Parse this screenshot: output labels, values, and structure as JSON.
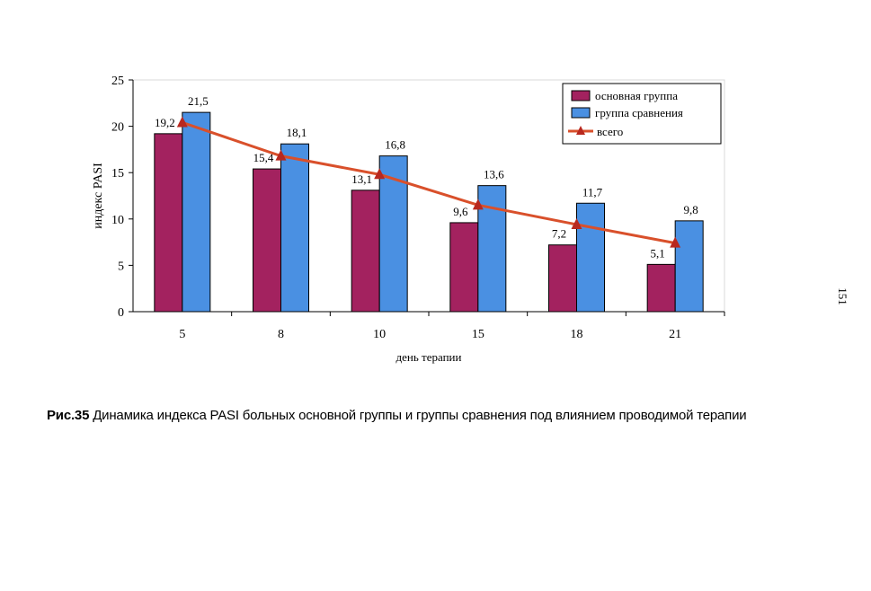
{
  "chart_data": {
    "type": "bar",
    "title": "",
    "xlabel": "день терапии",
    "ylabel": "индекс PASI",
    "categories": [
      "5",
      "8",
      "10",
      "15",
      "18",
      "21"
    ],
    "ylim": [
      0,
      25
    ],
    "yticks": [
      0,
      5,
      10,
      15,
      20,
      25
    ],
    "grid": false,
    "legend_position": "top-right",
    "series": [
      {
        "name": "основная группа",
        "type": "bar",
        "color": "#a3225f",
        "values": [
          19.2,
          15.4,
          13.1,
          9.6,
          7.2,
          5.1
        ],
        "labels": [
          "19,2",
          "15,4",
          "13,1",
          "9,6",
          "7,2",
          "5,1"
        ]
      },
      {
        "name": "группа  сравнения",
        "type": "bar",
        "color": "#4a90e2",
        "values": [
          21.5,
          18.1,
          16.8,
          13.6,
          11.7,
          9.8
        ],
        "labels": [
          "21,5",
          "18,1",
          "16,8",
          "13,6",
          "11,7",
          "9,8"
        ]
      },
      {
        "name": "всего",
        "type": "line",
        "color": "#d9502b",
        "values": [
          20.4,
          16.8,
          14.8,
          11.5,
          9.4,
          7.4
        ]
      }
    ]
  },
  "caption": {
    "prefix": "Рис.35",
    "text": " Динамика индекса PASI  больных основной группы и группы сравнения под влиянием проводимой терапии"
  },
  "page_number": "151"
}
